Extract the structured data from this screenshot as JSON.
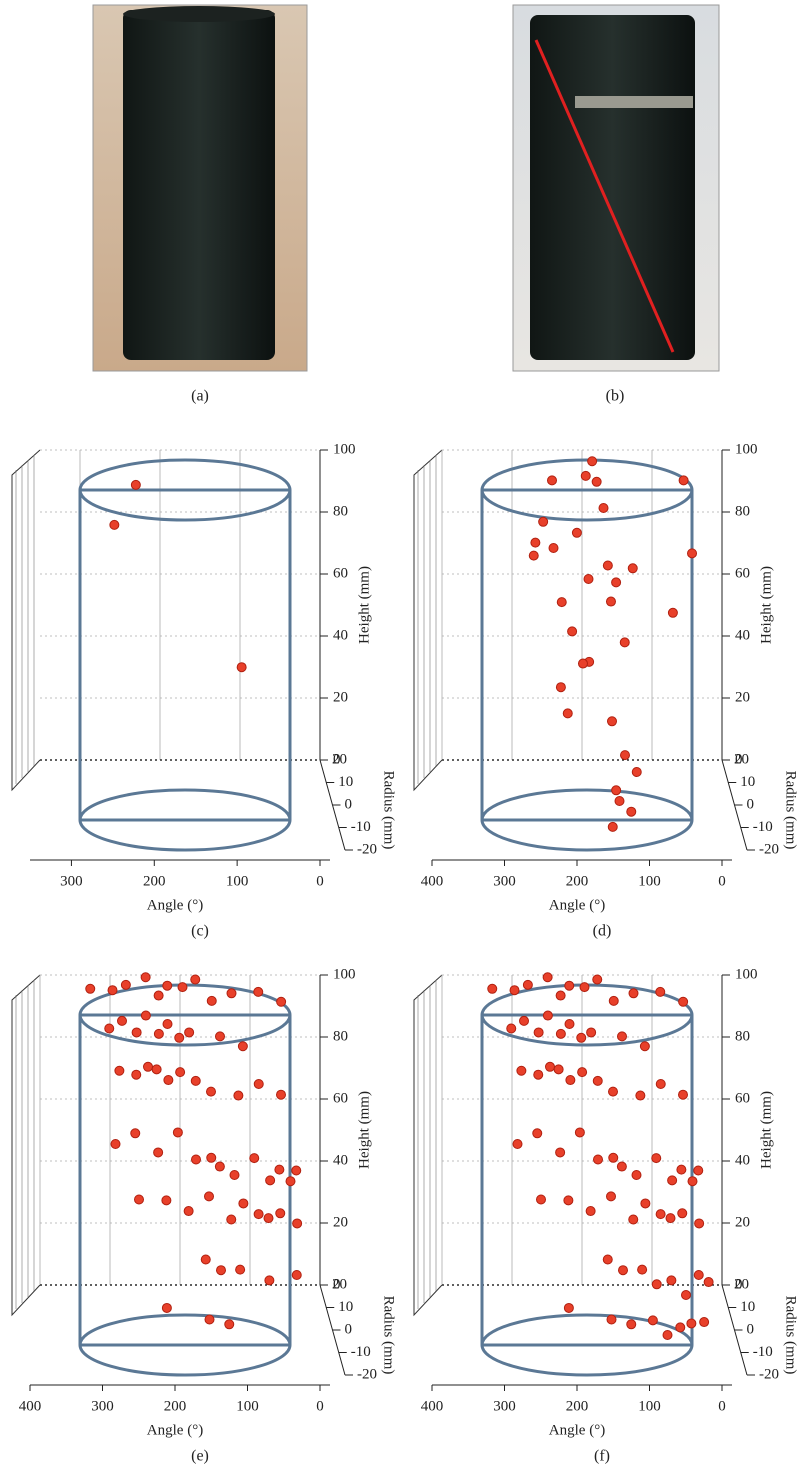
{
  "figure": {
    "photo_captions": [
      "(a)",
      "(b)"
    ]
  },
  "chart_data": [
    {
      "type": "scatter3d",
      "caption": "(c)",
      "xlabel": "Angle (°)",
      "ylabel": "Radius (mm)",
      "zlabel": "Height (mm)",
      "xlim": [
        350,
        0
      ],
      "xticks": [
        300,
        200,
        100,
        0
      ],
      "ylim": [
        -20,
        20
      ],
      "yticks": [
        -20,
        -10,
        0,
        10,
        20
      ],
      "zlim": [
        0,
        100
      ],
      "zticks": [
        0,
        20,
        40,
        60,
        80,
        100
      ],
      "color": "#e8402a",
      "x": [
        238,
        268,
        112
      ],
      "y": [
        10,
        6,
        2
      ],
      "z": [
        96,
        86,
        43
      ]
    },
    {
      "type": "scatter3d",
      "caption": "(d)",
      "xlabel": "Angle (°)",
      "ylabel": "Radius (mm)",
      "zlabel": "Height (mm)",
      "xlim": [
        400,
        0
      ],
      "xticks": [
        400,
        300,
        200,
        100,
        0
      ],
      "ylim": [
        -20,
        20
      ],
      "yticks": [
        -20,
        -10,
        0,
        10,
        20
      ],
      "zlim": [
        0,
        100
      ],
      "zticks": [
        0,
        20,
        40,
        60,
        80,
        100
      ],
      "color": "#e8402a",
      "x": [
        190,
        250,
        200,
        188,
        62,
        180,
        268,
        280,
        255,
        218,
        285,
        58,
        140,
        205,
        172,
        245,
        162,
        88,
        232,
        172,
        155,
        205,
        212,
        248,
        240,
        175,
        160,
        145,
        178,
        175,
        160,
        190
      ],
      "y": [
        15,
        12,
        14,
        10,
        12,
        8,
        6,
        5,
        4,
        8,
        2,
        3,
        6,
        4,
        10,
        2,
        8,
        0,
        0,
        5,
        2,
        3,
        5,
        0,
        -2,
        0,
        -4,
        -6,
        -10,
        -12,
        -14,
        -18
      ],
      "z": [
        100,
        96,
        96,
        97,
        96,
        90,
        87,
        81,
        80,
        82,
        79,
        79,
        72,
        70,
        70,
        64,
        66,
        62,
        56,
        62,
        51,
        44,
        42,
        38,
        31,
        27,
        19,
        15,
        12,
        10,
        8,
        6
      ]
    },
    {
      "type": "scatter3d",
      "caption": "(e)",
      "xlabel": "Angle (°)",
      "ylabel": "Radius (mm)",
      "zlabel": "Height (mm)",
      "xlim": [
        400,
        0
      ],
      "xticks": [
        400,
        300,
        200,
        100,
        0
      ],
      "ylim": [
        -20,
        20
      ],
      "yticks": [
        -20,
        -10,
        0,
        10,
        20
      ],
      "zlim": [
        0,
        100
      ],
      "zticks": [
        0,
        20,
        40,
        60,
        80,
        100
      ],
      "color": "#e8402a",
      "x": [
        330,
        300,
        280,
        250,
        235,
        220,
        200,
        180,
        160,
        130,
        90,
        60,
        310,
        290,
        270,
        255,
        240,
        225,
        210,
        195,
        150,
        120,
        300,
        275,
        260,
        245,
        230,
        215,
        190,
        170,
        130,
        100,
        70,
        310,
        280,
        250,
        220,
        195,
        175,
        160,
        140,
        110,
        90,
        75,
        60,
        50,
        280,
        240,
        210,
        180,
        150,
        130,
        110,
        95,
        80,
        55,
        190,
        170,
        140,
        100,
        60,
        250,
        190,
        160
      ],
      "y": [
        18,
        16,
        17,
        19,
        15,
        18,
        16,
        18,
        14,
        16,
        18,
        15,
        10,
        12,
        11,
        13,
        9,
        12,
        10,
        11,
        12,
        9,
        5,
        6,
        4,
        7,
        5,
        3,
        6,
        4,
        5,
        6,
        4,
        0,
        2,
        -1,
        1,
        0,
        -2,
        1,
        0,
        2,
        -1,
        1,
        0,
        2,
        -4,
        -3,
        -5,
        -4,
        -6,
        -3,
        -5,
        -4,
        -6,
        -5,
        -10,
        -12,
        -9,
        -11,
        -10,
        -15,
        -16,
        -14
      ],
      "z": [
        97,
        98,
        99,
        100,
        97,
        98,
        99,
        100,
        96,
        97,
        96,
        95,
        90,
        91,
        88,
        92,
        89,
        90,
        87,
        88,
        86,
        85,
        80,
        78,
        82,
        79,
        77,
        81,
        76,
        74,
        72,
        75,
        73,
        60,
        62,
        58,
        63,
        55,
        57,
        52,
        50,
        54,
        49,
        51,
        48,
        50,
        45,
        44,
        42,
        46,
        40,
        43,
        41,
        39,
        42,
        38,
        30,
        28,
        26,
        24,
        25,
        18,
        15,
        12
      ]
    },
    {
      "type": "scatter3d",
      "caption": "(f)",
      "xlabel": "Angle (°)",
      "ylabel": "Radius (mm)",
      "zlabel": "Height (mm)",
      "xlim": [
        400,
        0
      ],
      "xticks": [
        400,
        300,
        200,
        100,
        0
      ],
      "ylim": [
        -20,
        20
      ],
      "yticks": [
        -20,
        -10,
        0,
        10,
        20
      ],
      "zlim": [
        0,
        100
      ],
      "zticks": [
        0,
        20,
        40,
        60,
        80,
        100
      ],
      "color": "#e8402a",
      "x": [
        330,
        300,
        280,
        250,
        235,
        220,
        200,
        180,
        160,
        130,
        90,
        60,
        310,
        290,
        270,
        255,
        240,
        225,
        210,
        195,
        150,
        120,
        300,
        275,
        260,
        245,
        230,
        215,
        190,
        170,
        130,
        100,
        70,
        310,
        280,
        250,
        220,
        195,
        175,
        160,
        140,
        110,
        90,
        75,
        60,
        50,
        280,
        240,
        210,
        180,
        150,
        130,
        110,
        95,
        80,
        55,
        190,
        170,
        140,
        120,
        100,
        80,
        60,
        45,
        250,
        190,
        160,
        130,
        110,
        90,
        75,
        55
      ],
      "y": [
        18,
        16,
        17,
        19,
        15,
        18,
        16,
        18,
        14,
        16,
        18,
        15,
        10,
        12,
        11,
        13,
        9,
        12,
        10,
        11,
        12,
        9,
        5,
        6,
        4,
        7,
        5,
        3,
        6,
        4,
        5,
        6,
        4,
        0,
        2,
        -1,
        1,
        0,
        -2,
        1,
        0,
        2,
        -1,
        1,
        0,
        2,
        -4,
        -3,
        -5,
        -4,
        -6,
        -3,
        -5,
        -4,
        -6,
        -5,
        -10,
        -12,
        -9,
        -10,
        -11,
        -12,
        -10,
        -9,
        -15,
        -16,
        -14,
        -15,
        -16,
        -14,
        -15,
        -13
      ],
      "z": [
        97,
        98,
        99,
        100,
        97,
        98,
        99,
        100,
        96,
        97,
        96,
        95,
        90,
        91,
        88,
        92,
        89,
        90,
        87,
        88,
        86,
        85,
        80,
        78,
        82,
        79,
        77,
        81,
        76,
        74,
        72,
        75,
        73,
        60,
        62,
        58,
        63,
        55,
        57,
        52,
        50,
        54,
        49,
        51,
        48,
        50,
        45,
        44,
        42,
        46,
        40,
        43,
        41,
        39,
        42,
        38,
        30,
        28,
        26,
        22,
        24,
        20,
        25,
        22,
        18,
        15,
        12,
        14,
        10,
        11,
        13,
        12
      ]
    }
  ]
}
